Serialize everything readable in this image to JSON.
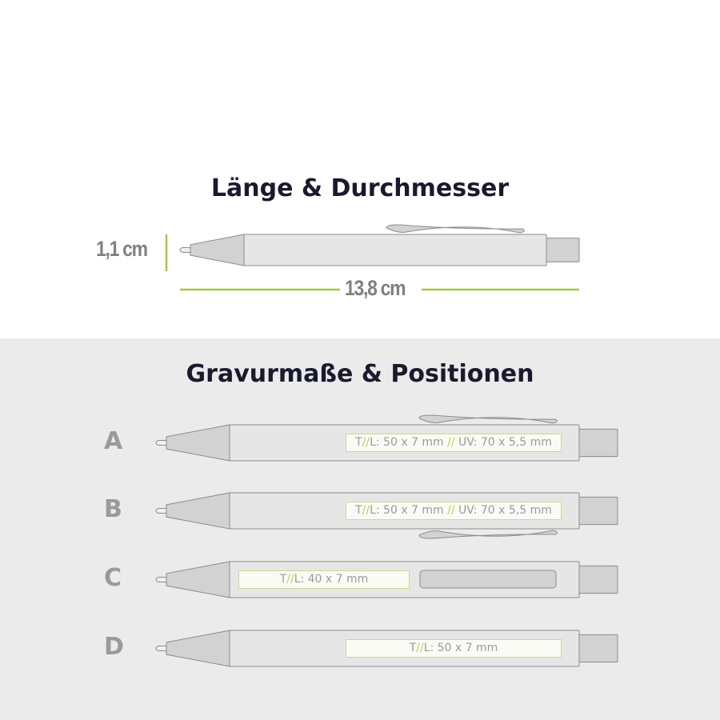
{
  "section1": {
    "title": "Länge & Durchmesser",
    "diameter": "1,1 cm",
    "length": "13,8 cm"
  },
  "section2": {
    "title": "Gravurmaße & Positionen",
    "positions": [
      {
        "label": "A",
        "clip": "top",
        "engraving": {
          "tl": "T",
          "sep": "//",
          "rest1": "L: 50 x 7 mm ",
          "sep2": "//",
          "rest2": " UV: 70 x 5,5 mm"
        }
      },
      {
        "label": "B",
        "clip": "bottom",
        "engraving": {
          "tl": "T",
          "sep": "//",
          "rest1": "L: 50 x 7 mm ",
          "sep2": "//",
          "rest2": " UV: 70 x 5,5 mm"
        }
      },
      {
        "label": "C",
        "clip": "side",
        "engraving": {
          "tl": "T",
          "sep": "//",
          "rest1": "L: 40 x 7 mm",
          "sep2": "",
          "rest2": ""
        }
      },
      {
        "label": "D",
        "clip": "none",
        "engraving": {
          "tl": "T",
          "sep": "//",
          "rest1": "L: 50 x 7 mm",
          "sep2": "",
          "rest2": ""
        }
      }
    ]
  },
  "colors": {
    "accent": "#a6c83c",
    "pen_body": "#e6e6e6",
    "pen_part": "#d2d2d2",
    "outline": "#8c8c8c",
    "panel": "#ebebeb"
  }
}
